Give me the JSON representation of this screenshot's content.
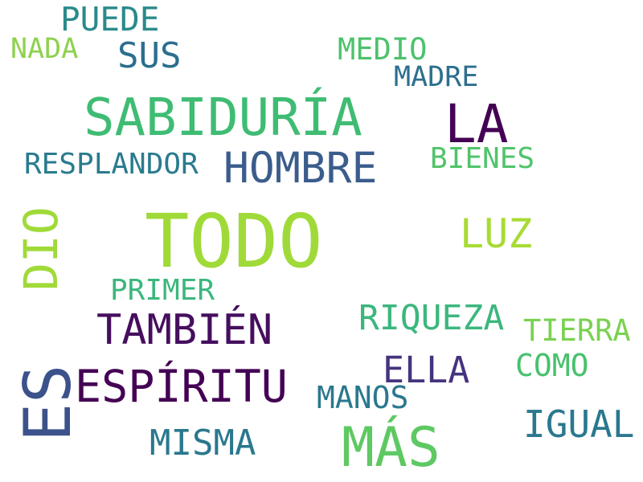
{
  "words": [
    {
      "text": "PUEDE",
      "color": "#2a8a8a"
    },
    {
      "text": "NADA",
      "color": "#8fd14f"
    },
    {
      "text": "SUS",
      "color": "#2c6e8e"
    },
    {
      "text": "MEDIO",
      "color": "#4cc26c"
    },
    {
      "text": "MADRE",
      "color": "#2d6f8e"
    },
    {
      "text": "SABIDURÍA",
      "color": "#3fbc73"
    },
    {
      "text": "LA",
      "color": "#440154"
    },
    {
      "text": "RESPLANDOR",
      "color": "#2a7b8e"
    },
    {
      "text": "HOMBRE",
      "color": "#3b5c8c"
    },
    {
      "text": "BIENES",
      "color": "#4fc46a"
    },
    {
      "text": "DIO",
      "color": "#a0da39"
    },
    {
      "text": "TODO",
      "color": "#a0da39"
    },
    {
      "text": "LUZ",
      "color": "#a8db34"
    },
    {
      "text": "PRIMER",
      "color": "#3bb77d"
    },
    {
      "text": "RIQUEZA",
      "color": "#3bb77d"
    },
    {
      "text": "TAMBIÉN",
      "color": "#450e5e"
    },
    {
      "text": "TIERRA",
      "color": "#7ad151"
    },
    {
      "text": "ES",
      "color": "#3b528b"
    },
    {
      "text": "ESPÍRITU",
      "color": "#440154"
    },
    {
      "text": "ELLA",
      "color": "#46337e"
    },
    {
      "text": "COMO",
      "color": "#48c16e"
    },
    {
      "text": "MANOS",
      "color": "#2a788e"
    },
    {
      "text": "IGUAL",
      "color": "#2a788e"
    },
    {
      "text": "MISMA",
      "color": "#2a788e"
    },
    {
      "text": "MÁS",
      "color": "#5ec962"
    }
  ]
}
